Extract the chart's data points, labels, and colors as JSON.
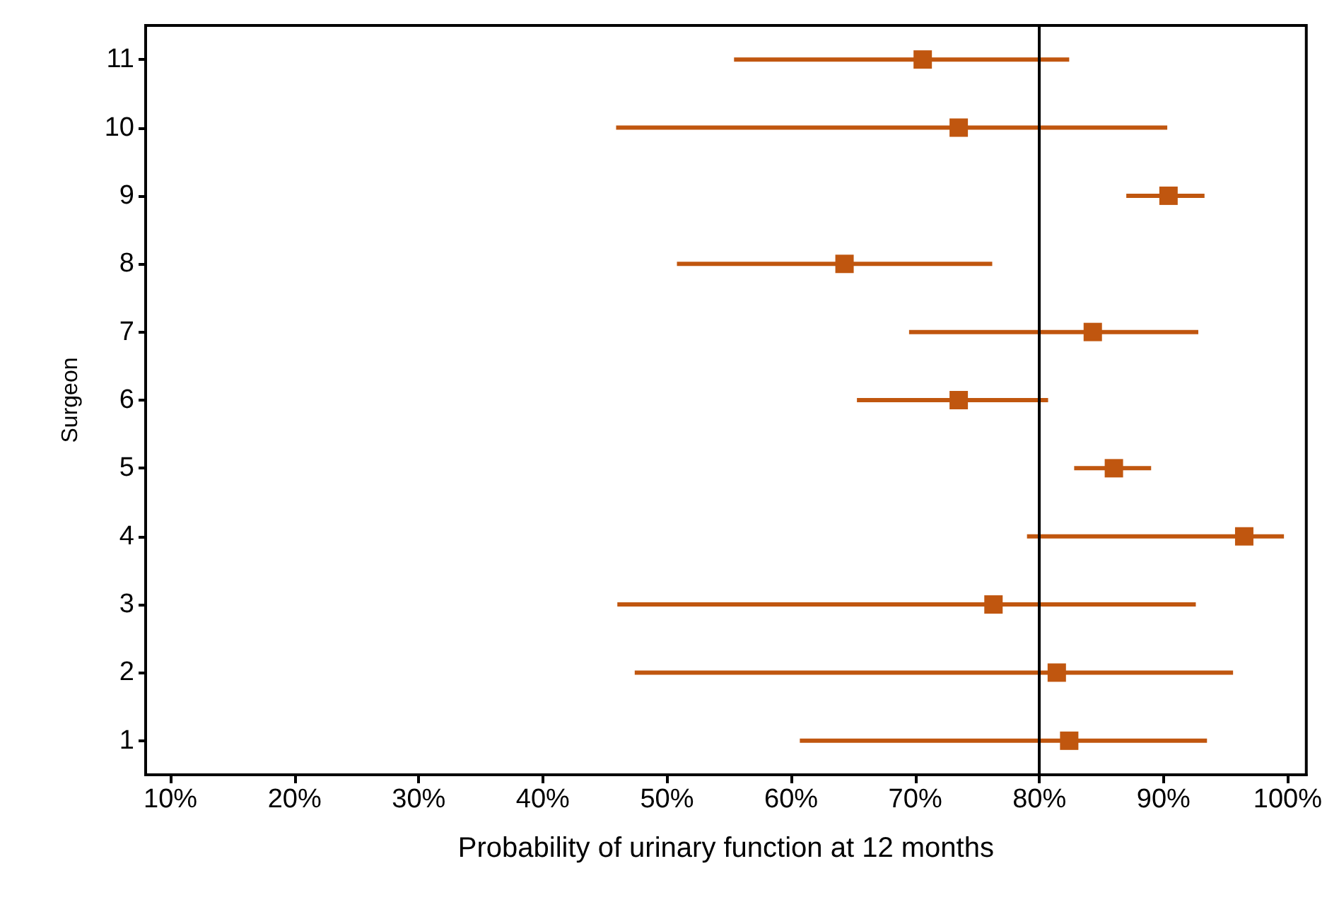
{
  "chart_data": {
    "type": "scatter",
    "orientation": "horizontal",
    "xlabel": "Probability of urinary function at 12 months",
    "ylabel": "Surgeon",
    "categories": [
      "11",
      "10",
      "9",
      "8",
      "7",
      "6",
      "5",
      "4",
      "3",
      "2",
      "1"
    ],
    "series": [
      {
        "color": "#c0560f",
        "values": [
          70.6,
          73.5,
          90.4,
          64.3,
          84.3,
          73.5,
          86.0,
          96.5,
          76.3,
          81.4,
          82.4
        ],
        "errors": [
          [
            55.4,
            82.4
          ],
          [
            45.9,
            90.3
          ],
          [
            87.0,
            93.3
          ],
          [
            50.8,
            76.2
          ],
          [
            69.5,
            92.8
          ],
          [
            65.3,
            80.7
          ],
          [
            82.8,
            89.0
          ],
          [
            79.0,
            99.7
          ],
          [
            46.0,
            92.6
          ],
          [
            47.4,
            95.6
          ],
          [
            60.7,
            93.5
          ]
        ]
      }
    ],
    "xlim": [
      8,
      101.5
    ],
    "xticks": [
      {
        "value": 10,
        "label": "10%"
      },
      {
        "value": 20,
        "label": "20%"
      },
      {
        "value": 30,
        "label": "30%"
      },
      {
        "value": 40,
        "label": "40%"
      },
      {
        "value": 50,
        "label": "50%"
      },
      {
        "value": 60,
        "label": "60%"
      },
      {
        "value": 70,
        "label": "70%"
      },
      {
        "value": 80,
        "label": "80%"
      },
      {
        "value": 90,
        "label": "90%"
      },
      {
        "value": 100,
        "label": "100%"
      }
    ],
    "ref_lines": [
      {
        "axis": "x",
        "value": 80,
        "color": "#000000"
      }
    ],
    "marker": "square",
    "grid": false
  }
}
